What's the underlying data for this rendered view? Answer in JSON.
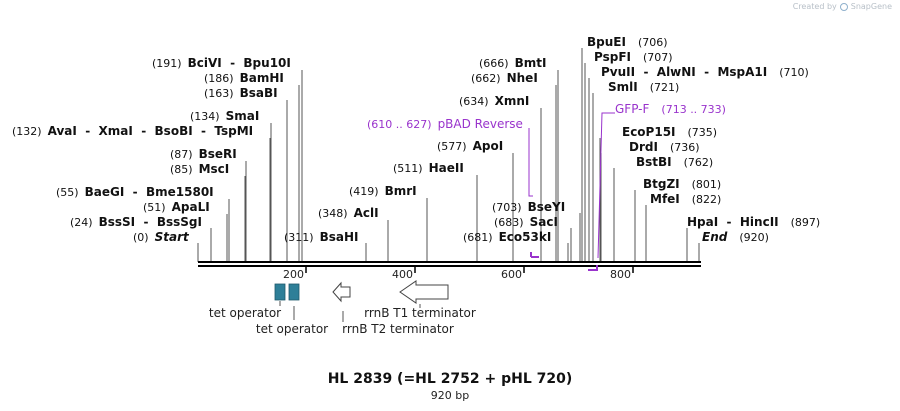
{
  "credit": {
    "prefix": "Created by",
    "brand": "SnapGene"
  },
  "title": "HL 2839 (=HL 2752 + pHL 720)",
  "subtitle": "920 bp",
  "sequence_length": 920,
  "ruler_ticks": [
    {
      "value": 200,
      "label": "200"
    },
    {
      "value": 400,
      "label": "400"
    },
    {
      "value": 600,
      "label": "600"
    },
    {
      "value": 800,
      "label": "800"
    }
  ],
  "colors": {
    "feature_purple": "#9933cc",
    "operator_teal": "#2e7f98",
    "line": "#000000",
    "gray_line": "#555555"
  },
  "sites": [
    {
      "pos": "(24)",
      "names": "BssSI  -  BssSgI"
    },
    {
      "pos": "(0)",
      "names": "Start",
      "italic": true
    },
    {
      "pos": "(51)",
      "names": "ApaLI"
    },
    {
      "pos": "(55)",
      "names": "BaeGI  -  Bme1580I"
    },
    {
      "pos": "(85)",
      "names": "MscI"
    },
    {
      "pos": "(87)",
      "names": "BseRI"
    },
    {
      "pos": "(132)",
      "names": "AvaI  -  XmaI  -  BsoBI  -  TspMI"
    },
    {
      "pos": "(134)",
      "names": "SmaI"
    },
    {
      "pos": "(163)",
      "names": "BsaBI"
    },
    {
      "pos": "(186)",
      "names": "BamHI"
    },
    {
      "pos": "(191)",
      "names": "BciVI  -  Bpu10I"
    },
    {
      "pos": "(311)",
      "names": "BsaHI"
    },
    {
      "pos": "(348)",
      "names": "AclI"
    },
    {
      "pos": "(419)",
      "names": "BmrI"
    },
    {
      "pos": "(511)",
      "names": "HaeII"
    },
    {
      "pos": "(577)",
      "names": "ApoI"
    },
    {
      "pos": "(634)",
      "names": "XmnI"
    },
    {
      "pos": "(662)",
      "names": "NheI"
    },
    {
      "pos": "(666)",
      "names": "BmtI"
    },
    {
      "pos": "(681)",
      "names": "Eco53kI"
    },
    {
      "pos": "(683)",
      "names": "SacI"
    },
    {
      "pos": "(703)",
      "names": "BseYI"
    },
    {
      "pos": "(706)",
      "names": "BpuEI"
    },
    {
      "pos": "(707)",
      "names": "PspFI"
    },
    {
      "pos": "(710)",
      "names": "PvuII  -  AlwNI  -  MspA1I"
    },
    {
      "pos": "(721)",
      "names": "SmlI"
    },
    {
      "pos": "(735)",
      "names": "EcoP15I"
    },
    {
      "pos": "(736)",
      "names": "DrdI"
    },
    {
      "pos": "(762)",
      "names": "BstBI"
    },
    {
      "pos": "(801)",
      "names": "BtgZI"
    },
    {
      "pos": "(822)",
      "names": "MfeI"
    },
    {
      "pos": "(897)",
      "names": "HpaI  -  HincII"
    },
    {
      "pos": "(920)",
      "names": "End",
      "italic": true
    }
  ],
  "features": [
    {
      "name": "pBAD Reverse",
      "range": "(610 .. 627)"
    },
    {
      "name": "GFP-F",
      "range": "(713 .. 733)"
    },
    {
      "name": "tet operator"
    },
    {
      "name": "tet operator"
    },
    {
      "name": "rrnB T2 terminator"
    },
    {
      "name": "rrnB T1 terminator"
    }
  ]
}
